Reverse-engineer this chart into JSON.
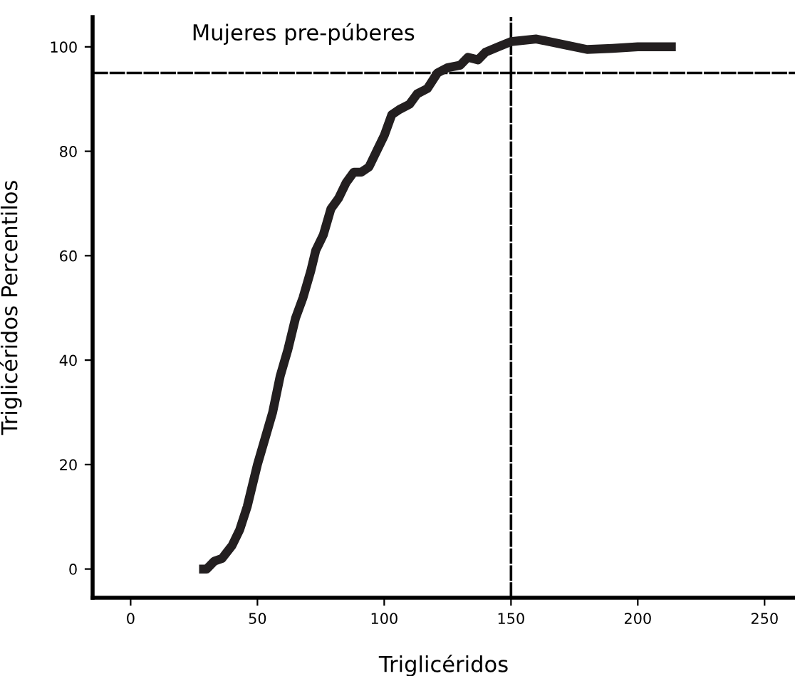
{
  "chart_data": {
    "type": "line",
    "title": "Mujeres pre-púberes",
    "xlabel": "Triglicéridos",
    "ylabel": "Triglicéridos Percentilos",
    "x": [
      27,
      30,
      33,
      36,
      40,
      43,
      46,
      50,
      53,
      56,
      59,
      62,
      65,
      68,
      71,
      73,
      76,
      79,
      82,
      85,
      88,
      91,
      94,
      97,
      100,
      103,
      106,
      110,
      113,
      117,
      121,
      125,
      130,
      133,
      137,
      140,
      145,
      150,
      160,
      170,
      180,
      190,
      200,
      215
    ],
    "series": [
      {
        "color": "#231f20",
        "values": [
          0,
          0,
          1.5,
          2,
          4.5,
          7.5,
          12,
          20,
          25,
          30,
          37,
          42,
          48,
          52,
          57,
          61,
          64,
          69,
          71,
          74,
          76,
          76,
          77,
          80,
          83,
          87,
          88,
          89,
          91,
          92,
          95,
          96,
          96.5,
          98,
          97.5,
          99,
          100,
          101,
          101.5,
          100.5,
          99.5,
          99.7,
          100,
          100
        ]
      }
    ],
    "xlim": [
      -15,
      262
    ],
    "ylim": [
      -5.5,
      105.7
    ],
    "xticks": [
      0,
      50,
      100,
      150,
      200,
      250
    ],
    "yticks": [
      0,
      20,
      40,
      60,
      80,
      100
    ],
    "ref_lines": [
      {
        "axis": "x",
        "value": 150,
        "color": "#000000",
        "line_style": "dashed"
      },
      {
        "axis": "y",
        "value": 95,
        "color": "#000000",
        "line_style": "dashed"
      }
    ],
    "grid": false,
    "legend": false,
    "marker": "none",
    "line_style": "solid"
  }
}
